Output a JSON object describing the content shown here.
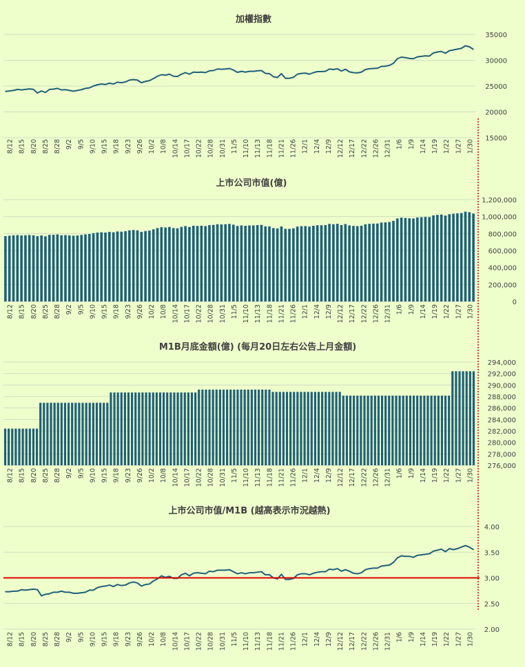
{
  "colors": {
    "background": "#eeffcc",
    "series": "#1f5f7a",
    "grid": "#d0dcc0",
    "axis_text": "#404040",
    "reference_line": "#e00000",
    "separator": "#cc0000"
  },
  "x_tick_labels": [
    "8/12",
    "8/15",
    "8/20",
    "8/25",
    "8/28",
    "9/2",
    "9/5",
    "9/10",
    "9/15",
    "9/18",
    "9/23",
    "9/26",
    "10/2",
    "10/8",
    "10/14",
    "10/17",
    "10/22",
    "10/28",
    "10/31",
    "11/5",
    "11/10",
    "11/13",
    "11/18",
    "11/21",
    "11/26",
    "12/1",
    "12/4",
    "12/9",
    "12/12",
    "12/17",
    "12/22",
    "12/26",
    "12/31",
    "1/6",
    "1/9",
    "1/14",
    "1/19",
    "1/22",
    "1/27",
    "1/30"
  ],
  "chart_data": [
    {
      "id": "taiex",
      "type": "line",
      "title": "加權指數",
      "ylim": [
        15000,
        35000
      ],
      "yticks": [
        "35000",
        "30000",
        "25000",
        "20000",
        "15000"
      ],
      "ytick_values": [
        35000,
        30000,
        25000,
        20000,
        15000
      ],
      "values": [
        23950,
        24050,
        24150,
        24350,
        24250,
        24350,
        24450,
        24350,
        23650,
        24050,
        23750,
        24350,
        24400,
        24550,
        24250,
        24300,
        24150,
        24000,
        24150,
        24300,
        24550,
        24650,
        25000,
        25250,
        25400,
        25300,
        25550,
        25400,
        25750,
        25650,
        25800,
        26150,
        26250,
        26150,
        25650,
        25900,
        26050,
        26450,
        26900,
        27200,
        27100,
        27300,
        26900,
        26850,
        27300,
        27600,
        27300,
        27700,
        27650,
        27700,
        27600,
        27950,
        28000,
        28300,
        28250,
        28300,
        28400,
        28100,
        27650,
        27850,
        27700,
        27850,
        27850,
        27950,
        28000,
        27450,
        27400,
        26800,
        26650,
        27400,
        26500,
        26500,
        26700,
        27300,
        27450,
        27500,
        27300,
        27600,
        27800,
        27800,
        27850,
        28300,
        28200,
        28350,
        27900,
        28250,
        27750,
        27600,
        27550,
        27700,
        28200,
        28350,
        28400,
        28450,
        28800,
        28850,
        29000,
        29400,
        30300,
        30600,
        30500,
        30350,
        30300,
        30650,
        30750,
        30850,
        30800,
        31400,
        31600,
        31700,
        31350,
        31850,
        32000,
        32150,
        32300,
        32800,
        32600,
        32100
      ]
    },
    {
      "id": "market_cap",
      "type": "bar",
      "title": "上市公司市值(億)",
      "ylim": [
        0,
        1200000
      ],
      "yticks": [
        "1,200,000",
        "1,000,000",
        "800,000",
        "600,000",
        "400,000",
        "200,000",
        "0"
      ],
      "ytick_values": [
        1200000,
        1000000,
        800000,
        600000,
        400000,
        200000,
        0
      ],
      "values": [
        770000,
        775000,
        780000,
        782000,
        778000,
        780000,
        783000,
        779000,
        770000,
        778000,
        768000,
        785000,
        786000,
        790000,
        780000,
        782000,
        778000,
        775000,
        778000,
        784000,
        790000,
        795000,
        805000,
        812000,
        815000,
        812000,
        820000,
        815000,
        825000,
        822000,
        828000,
        838000,
        842000,
        838000,
        820000,
        830000,
        835000,
        850000,
        865000,
        875000,
        872000,
        878000,
        865000,
        862000,
        878000,
        888000,
        878000,
        892000,
        890000,
        892000,
        888000,
        900000,
        902000,
        910000,
        908000,
        910000,
        914000,
        905000,
        890000,
        896000,
        892000,
        896000,
        896000,
        900000,
        902000,
        885000,
        884000,
        865000,
        860000,
        884000,
        856000,
        856000,
        862000,
        882000,
        887000,
        888000,
        882000,
        892000,
        898000,
        898000,
        900000,
        914000,
        910000,
        915000,
        900000,
        912000,
        896000,
        890000,
        888000,
        893000,
        910000,
        915000,
        917000,
        918000,
        930000,
        932000,
        936000,
        950000,
        978000,
        988000,
        984000,
        980000,
        978000,
        990000,
        993000,
        996000,
        994000,
        1014000,
        1020000,
        1024000,
        1012000,
        1028000,
        1034000,
        1038000,
        1042000,
        1058000,
        1052000,
        1036000
      ]
    },
    {
      "id": "m1b",
      "type": "bar",
      "title": "M1B月底金額(億) (每月20日左右公告上月金額)",
      "ylim": [
        276000,
        294000
      ],
      "yticks": [
        "294,000",
        "292,000",
        "290,000",
        "288,000",
        "286,000",
        "284,000",
        "282,000",
        "280,000",
        "278,000",
        "276,000"
      ],
      "ytick_values": [
        294000,
        292000,
        290000,
        288000,
        286000,
        284000,
        282000,
        280000,
        278000,
        276000
      ],
      "segments": [
        {
          "count": 10,
          "value": 282400
        },
        {
          "count": 20,
          "value": 286900
        },
        {
          "count": 25,
          "value": 288700
        },
        {
          "count": 21,
          "value": 289200
        },
        {
          "count": 20,
          "value": 288800
        },
        {
          "count": 31,
          "value": 288150
        },
        {
          "count": 7,
          "value": 292400
        }
      ]
    },
    {
      "id": "ratio",
      "type": "line",
      "title": "上市公司市值/M1B (越高表示市況越熱)",
      "ylim": [
        2.0,
        4.0
      ],
      "yticks": [
        "4.00",
        "3.50",
        "3.00",
        "2.50",
        "2.00"
      ],
      "ytick_values": [
        4.0,
        3.5,
        3.0,
        2.5,
        2.0
      ],
      "reference_value": 3.0,
      "values": [
        2.73,
        2.73,
        2.74,
        2.74,
        2.77,
        2.76,
        2.77,
        2.78,
        2.77,
        2.65,
        2.68,
        2.69,
        2.72,
        2.72,
        2.74,
        2.72,
        2.72,
        2.7,
        2.7,
        2.71,
        2.72,
        2.76,
        2.76,
        2.81,
        2.83,
        2.84,
        2.86,
        2.83,
        2.87,
        2.85,
        2.86,
        2.9,
        2.92,
        2.9,
        2.84,
        2.87,
        2.88,
        2.94,
        2.98,
        3.04,
        3.01,
        3.03,
        2.99,
        2.99,
        3.06,
        3.09,
        3.04,
        3.09,
        3.1,
        3.09,
        3.08,
        3.13,
        3.12,
        3.15,
        3.15,
        3.15,
        3.16,
        3.12,
        3.08,
        3.1,
        3.08,
        3.1,
        3.1,
        3.11,
        3.12,
        3.06,
        3.06,
        3.0,
        2.98,
        3.07,
        2.97,
        2.97,
        2.99,
        3.06,
        3.08,
        3.08,
        3.06,
        3.09,
        3.11,
        3.12,
        3.12,
        3.17,
        3.16,
        3.18,
        3.13,
        3.16,
        3.13,
        3.09,
        3.08,
        3.1,
        3.16,
        3.18,
        3.19,
        3.19,
        3.23,
        3.24,
        3.25,
        3.3,
        3.39,
        3.43,
        3.42,
        3.42,
        3.4,
        3.44,
        3.45,
        3.46,
        3.47,
        3.52,
        3.54,
        3.56,
        3.51,
        3.57,
        3.55,
        3.57,
        3.6,
        3.63,
        3.6,
        3.55
      ]
    }
  ]
}
